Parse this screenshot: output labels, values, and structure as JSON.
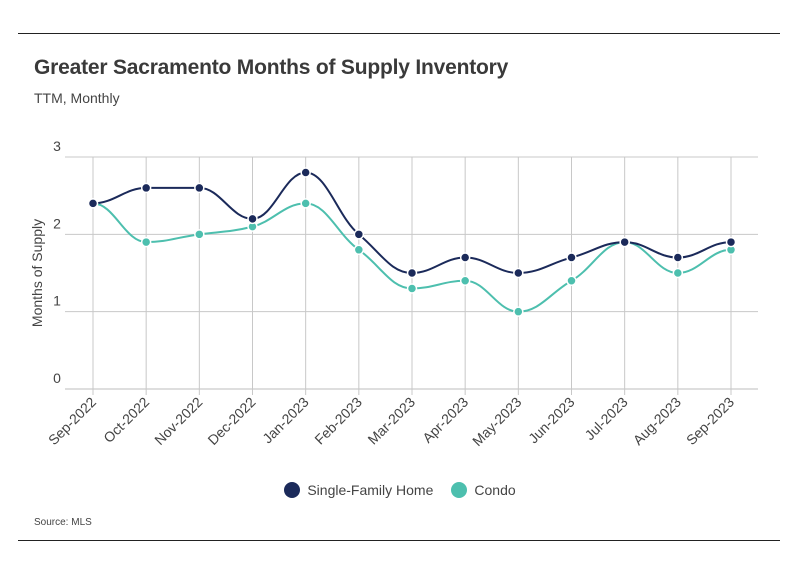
{
  "header": {
    "title": "Greater Sacramento Months of Supply Inventory",
    "subtitle": "TTM, Monthly"
  },
  "footer": {
    "source": "Source:  MLS"
  },
  "chart_data": {
    "type": "line",
    "title": "Greater Sacramento Months of Supply Inventory",
    "subtitle": "TTM, Monthly",
    "xlabel": "",
    "ylabel": "Months of Supply",
    "categories": [
      "Sep-2022",
      "Oct-2022",
      "Nov-2022",
      "Dec-2022",
      "Jan-2023",
      "Feb-2023",
      "Mar-2023",
      "Apr-2023",
      "May-2023",
      "Jun-2023",
      "Jul-2023",
      "Aug-2023",
      "Sep-2023"
    ],
    "ylim": [
      0,
      3
    ],
    "yticks": [
      "0",
      "1",
      "2",
      "3"
    ],
    "grid": true,
    "legend": "bottom-center",
    "smooth": true,
    "series": [
      {
        "name": "Single-Family Home",
        "color": "#1b2a5a",
        "values": [
          2.4,
          2.6,
          2.6,
          2.2,
          2.8,
          2.0,
          1.5,
          1.7,
          1.5,
          1.7,
          1.9,
          1.7,
          1.9
        ]
      },
      {
        "name": "Condo",
        "color": "#4dbfae",
        "values": [
          2.4,
          1.9,
          2.0,
          2.1,
          2.4,
          1.8,
          1.3,
          1.4,
          1.0,
          1.4,
          1.9,
          1.5,
          1.8
        ]
      }
    ]
  }
}
